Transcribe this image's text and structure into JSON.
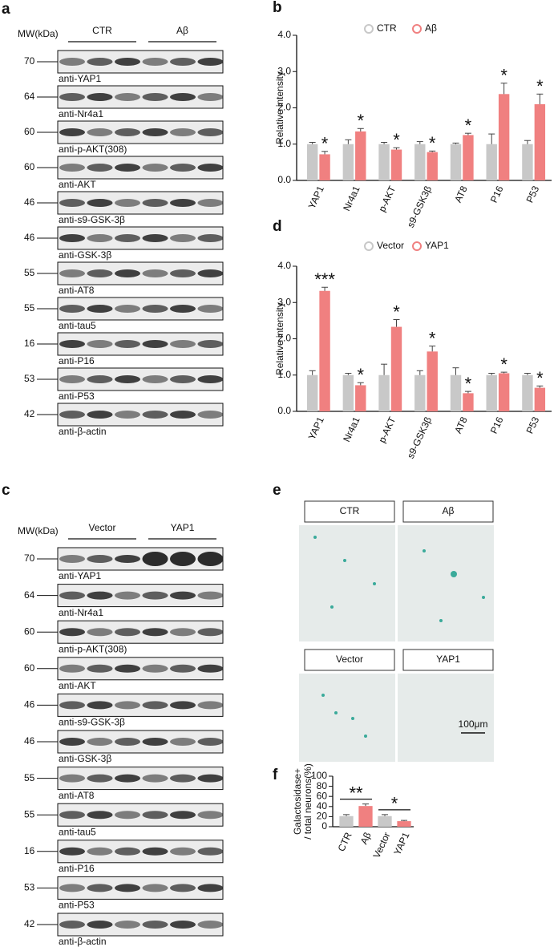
{
  "blots": [
    {
      "panel": "a",
      "mw_header": "MW(kDa)",
      "groups": [
        "CTR",
        "Aβ"
      ],
      "rows": [
        {
          "mw": "70",
          "label": "anti-YAP1"
        },
        {
          "mw": "64",
          "label": "anti-Nr4a1"
        },
        {
          "mw": "60",
          "label": "anti-p-AKT(308)"
        },
        {
          "mw": "60",
          "label": "anti-AKT"
        },
        {
          "mw": "46",
          "label": "anti-s9-GSK-3β"
        },
        {
          "mw": "46",
          "label": "anti-GSK-3β"
        },
        {
          "mw": "55",
          "label": "anti-AT8"
        },
        {
          "mw": "55",
          "label": "anti-tau5"
        },
        {
          "mw": "16",
          "label": "anti-P16"
        },
        {
          "mw": "53",
          "label": "anti-P53"
        },
        {
          "mw": "42",
          "label": "anti-β-actin"
        }
      ]
    },
    {
      "panel": "c",
      "mw_header": "MW(kDa)",
      "groups": [
        "Vector",
        "YAP1"
      ],
      "rows": [
        {
          "mw": "70",
          "label": "anti-YAP1"
        },
        {
          "mw": "64",
          "label": "anti-Nr4a1"
        },
        {
          "mw": "60",
          "label": "anti-p-AKT(308)"
        },
        {
          "mw": "60",
          "label": "anti-AKT"
        },
        {
          "mw": "46",
          "label": "anti-s9-GSK-3β"
        },
        {
          "mw": "46",
          "label": "anti-GSK-3β"
        },
        {
          "mw": "55",
          "label": "anti-AT8"
        },
        {
          "mw": "55",
          "label": "anti-tau5"
        },
        {
          "mw": "16",
          "label": "anti-P16"
        },
        {
          "mw": "53",
          "label": "anti-P53"
        },
        {
          "mw": "42",
          "label": "anti-β-actin"
        }
      ]
    }
  ],
  "images": {
    "panel": "e",
    "labels": [
      "CTR",
      "Aβ",
      "Vector",
      "YAP1"
    ],
    "scale_bar": "100μm"
  },
  "chart_data": [
    {
      "type": "grouped_bar",
      "panel": "b",
      "ylabel": "Relative intensity",
      "categories": [
        "YAP1",
        "Nr4a1",
        "p-AKT",
        "s9-GSK3β",
        "AT8",
        "P16",
        "P53"
      ],
      "series": [
        {
          "name": "CTR",
          "color": "#c8c8c8",
          "values": [
            1.0,
            1.0,
            1.0,
            1.0,
            1.0,
            1.0,
            1.0
          ],
          "errors": [
            0.05,
            0.12,
            0.05,
            0.07,
            0.03,
            0.28,
            0.1
          ]
        },
        {
          "name": "Aβ",
          "color": "#f08080",
          "values": [
            0.72,
            1.35,
            0.85,
            0.78,
            1.25,
            2.38,
            2.1
          ],
          "errors": [
            0.08,
            0.08,
            0.05,
            0.03,
            0.05,
            0.3,
            0.28
          ]
        }
      ],
      "significance": [
        "*",
        "*",
        "*",
        "*",
        "*",
        "*",
        "*"
      ],
      "ylim": [
        0,
        4
      ],
      "yticks": [
        {
          "value": 0,
          "label": "0.0"
        },
        {
          "value": 1,
          "label": "1.0"
        },
        {
          "value": 2,
          "label": "2.0"
        },
        {
          "value": 3,
          "label": "3.0"
        },
        {
          "value": 4,
          "label": "4.0"
        }
      ]
    },
    {
      "type": "grouped_bar",
      "panel": "d",
      "ylabel": "Relative intensity",
      "categories": [
        "YAP1",
        "Nr4a1",
        "p-AKT",
        "s9-GSK3β",
        "AT8",
        "P16",
        "P53"
      ],
      "series": [
        {
          "name": "Vector",
          "color": "#c8c8c8",
          "values": [
            1.0,
            1.0,
            1.0,
            1.0,
            1.0,
            1.0,
            1.0
          ],
          "errors": [
            0.12,
            0.05,
            0.3,
            0.12,
            0.2,
            0.05,
            0.05
          ]
        },
        {
          "name": "YAP1",
          "color": "#f08080",
          "values": [
            3.32,
            0.72,
            2.33,
            1.65,
            0.5,
            1.05,
            0.65
          ],
          "errors": [
            0.1,
            0.07,
            0.2,
            0.15,
            0.05,
            0.03,
            0.05
          ]
        }
      ],
      "significance": [
        "***",
        "*",
        "*",
        "*",
        "*",
        "*",
        "*"
      ],
      "ylim": [
        0,
        4
      ],
      "yticks": [
        {
          "value": 0,
          "label": "0.0"
        },
        {
          "value": 1,
          "label": "1.0"
        },
        {
          "value": 2,
          "label": "2.0"
        },
        {
          "value": 3,
          "label": "3.0"
        },
        {
          "value": 4,
          "label": "4.0"
        }
      ]
    },
    {
      "type": "bar",
      "panel": "f",
      "ylabel": [
        "Galactosidase+",
        "/ total neurons(%)"
      ],
      "categories": [
        "CTR",
        "Aβ",
        "Vector",
        "YAP1"
      ],
      "values": [
        21,
        41,
        21,
        11
      ],
      "errors": [
        3,
        4,
        3,
        1.5
      ],
      "colors": [
        "#c8c8c8",
        "#f08080",
        "#c8c8c8",
        "#f08080"
      ],
      "significance": [
        "**",
        "*"
      ],
      "ylim": [
        0,
        100
      ],
      "yticks": [
        0,
        20,
        40,
        60,
        80,
        100
      ]
    }
  ]
}
